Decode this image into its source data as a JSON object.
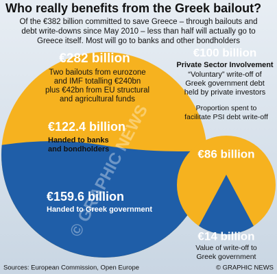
{
  "header": {
    "title": "Who really benefits from the Greek bailout?",
    "subtitle": [
      "Of the €382 billion committed to save Greece – through bailouts and",
      "debt write-downs since May 2010 – less than half will actually go to",
      "Greece itself. Most will go to banks and other bondholders"
    ]
  },
  "left": {
    "total": "€282 billion",
    "description": [
      "Two bailouts from eurozone",
      "and IMF totalling €240bn",
      "plus €42bn from EU structural",
      "and agricultural funds"
    ],
    "banks_value": "€122.4 billion",
    "banks_label": [
      "Handed to banks",
      "and bondholders"
    ],
    "greece_value": "€159.6 billion",
    "greece_label": "Handed to Greek government"
  },
  "right": {
    "total": "€100 billion",
    "heading": "Private Sector Involvement",
    "description": [
      "“Voluntary” write-off of",
      "Greek government debt",
      "held by private investors"
    ],
    "proportion_label": [
      "Proportion spent to",
      "facilitate PSI debt write-off"
    ],
    "psi_value": "€86 billion",
    "greece_value": "€14 billion",
    "greece_label": [
      "Value of write-off to",
      "Greek government"
    ]
  },
  "watermark": "© GRAPHIC NEWS",
  "footer": {
    "sources": "Sources: European Commission, Open Europe",
    "credit": "© GRAPHIC NEWS"
  }
}
